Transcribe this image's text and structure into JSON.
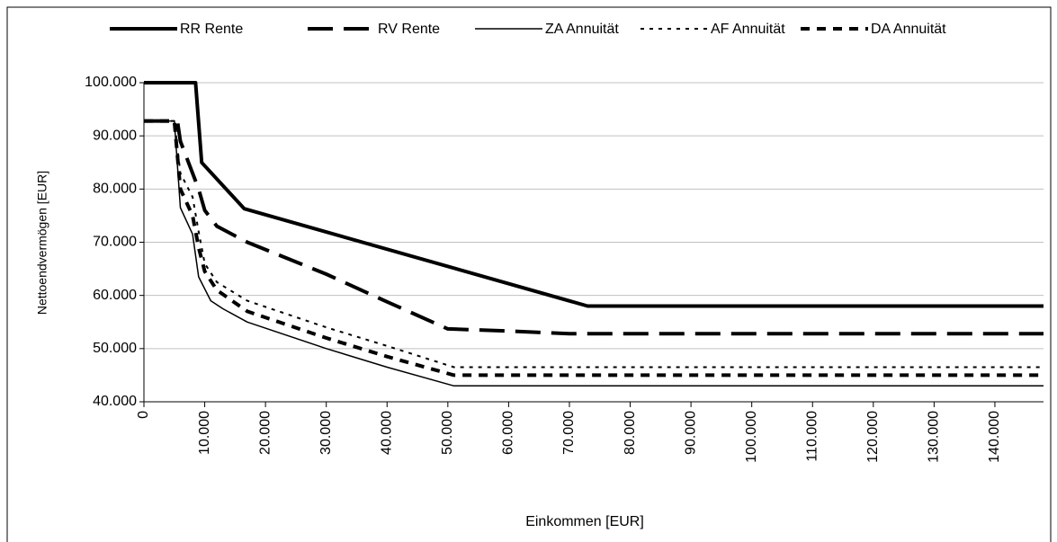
{
  "chart_data": {
    "type": "line",
    "x_label": "Einkommen [EUR]",
    "y_label": "Nettoendvermögen [EUR]",
    "xlim": [
      0,
      148000
    ],
    "ylim": [
      40000,
      100000
    ],
    "xticks": [
      0,
      {
        "value": 10000,
        "label": "10.000"
      },
      {
        "value": 20000,
        "label": "20.000"
      },
      {
        "value": 30000,
        "label": "30.000"
      },
      {
        "value": 40000,
        "label": "40.000"
      },
      {
        "value": 50000,
        "label": "50.000"
      },
      {
        "value": 60000,
        "label": "60.000"
      },
      {
        "value": 70000,
        "label": "70.000"
      },
      {
        "value": 80000,
        "label": "80.000"
      },
      {
        "value": 90000,
        "label": "90.000"
      },
      {
        "value": 100000,
        "label": "100.000"
      },
      {
        "value": 110000,
        "label": "110.000"
      },
      {
        "value": 120000,
        "label": "120.000"
      },
      {
        "value": 130000,
        "label": "130.000"
      },
      {
        "value": 140000,
        "label": "140.000"
      }
    ],
    "yticks": [
      {
        "value": 40000,
        "label": "40.000"
      },
      {
        "value": 50000,
        "label": "50.000"
      },
      {
        "value": 60000,
        "label": "60.000"
      },
      {
        "value": 70000,
        "label": "70.000"
      },
      {
        "value": 80000,
        "label": "80.000"
      },
      {
        "value": 90000,
        "label": "90.000"
      },
      {
        "value": 100000,
        "label": "100.000"
      }
    ],
    "grid": true,
    "legend": "top",
    "series": [
      {
        "name": "RR Rente",
        "color": "#000000",
        "width": 4,
        "dash": "none",
        "x": [
          0,
          8500,
          9500,
          16500,
          73000,
          148000
        ],
        "values": [
          100000,
          100000,
          85000,
          76300,
          58000,
          58000
        ]
      },
      {
        "name": "RV Rente",
        "color": "#000000",
        "width": 4,
        "dash": "28 12",
        "x": [
          0,
          5500,
          6000,
          9000,
          10000,
          12000,
          17000,
          30000,
          40000,
          50000,
          60000,
          70000,
          148000
        ],
        "values": [
          92800,
          92800,
          89000,
          80000,
          76000,
          73000,
          70000,
          64000,
          58800,
          53700,
          53300,
          52800,
          52800
        ]
      },
      {
        "name": "ZA Annuität",
        "color": "#000000",
        "width": 1.5,
        "dash": "none",
        "x": [
          0,
          5000,
          6000,
          8000,
          9000,
          11000,
          13000,
          17000,
          30000,
          40000,
          51000,
          148000
        ],
        "values": [
          92800,
          92800,
          76500,
          71500,
          63500,
          59000,
          57500,
          55000,
          50000,
          46500,
          43000,
          43000
        ]
      },
      {
        "name": "AF Annuität",
        "color": "#000000",
        "width": 2,
        "dash": "4 6",
        "x": [
          0,
          5000,
          6000,
          8000,
          9000,
          10000,
          12000,
          17000,
          30000,
          40000,
          51000,
          148000
        ],
        "values": [
          92800,
          92800,
          83000,
          78500,
          72000,
          66000,
          62500,
          59000,
          54000,
          50500,
          46500,
          46500
        ]
      },
      {
        "name": "DA Annuität",
        "color": "#000000",
        "width": 4,
        "dash": "10 8",
        "x": [
          0,
          5000,
          6000,
          8000,
          9000,
          10000,
          12000,
          17000,
          30000,
          40000,
          51000,
          148000
        ],
        "values": [
          92800,
          92800,
          80000,
          75000,
          69000,
          64500,
          61000,
          57000,
          52000,
          48500,
          45000,
          45000
        ]
      }
    ]
  }
}
